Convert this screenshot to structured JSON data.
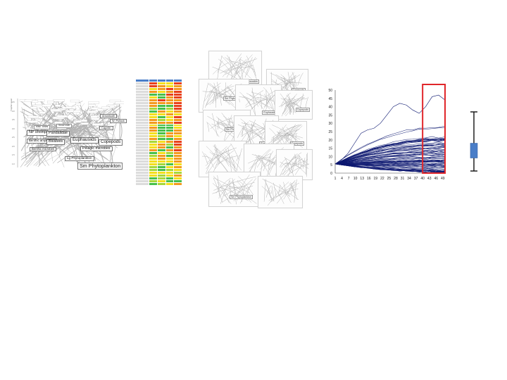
{
  "foodweb": {
    "y_axis_label": "Trophic Level",
    "y_ticks": [
      "4.5",
      "4.0",
      "3.5",
      "3.0",
      "2.5",
      "2.0",
      "1.5",
      "1.0"
    ],
    "major_labels": [
      {
        "id": "np-shrimp",
        "text": "NP shrimp"
      },
      {
        "id": "pandalidae",
        "text": "Pandalidae"
      },
      {
        "id": "euphausiids",
        "text": "Euphausiids"
      },
      {
        "id": "copepods",
        "text": "Copepods"
      },
      {
        "id": "benthic-amphipods",
        "text": "Benthic amphipods"
      },
      {
        "id": "bivalves",
        "text": "Bivalves"
      },
      {
        "id": "pelagic-microbes",
        "text": "Pelagic microbes"
      },
      {
        "id": "benthic-microbes",
        "text": "Benthic microbes"
      },
      {
        "id": "lg-phytoplankton",
        "text": "Lg Phytoplankton"
      },
      {
        "id": "sm-phytoplankton",
        "text": "Sm Phytoplankton"
      },
      {
        "id": "capelin",
        "text": "Capelin"
      },
      {
        "id": "arrowtooth",
        "text": "Arrowtooth"
      },
      {
        "id": "w-pollock",
        "text": "W. Pollock"
      },
      {
        "id": "misc-crabs",
        "text": "Misc. crabs"
      },
      {
        "id": "snow-crab",
        "text": "Snow crab"
      }
    ]
  },
  "heatmap": {
    "colors": {
      "red": "#e8401c",
      "orange": "#f39a1f",
      "yellow": "#f4df1e",
      "green": "#47c04a",
      "lightgreen": "#a6d83a",
      "grey": "#dcdcdc",
      "blue": "#4a7ec8"
    }
  },
  "montage": {
    "caption": "Sm Phytoplankton",
    "thumbnail_labels": [
      "Euphausiids",
      "Copepods",
      "Sm Phytoplankton",
      "Euphausiids",
      "Copepods",
      "Sm Phytoplankton",
      "Euphausiids",
      "Copepods"
    ]
  },
  "chart_data": {
    "type": "line",
    "x_ticks": [
      "1",
      "4",
      "7",
      "10",
      "13",
      "16",
      "19",
      "22",
      "25",
      "28",
      "31",
      "34",
      "37",
      "40",
      "43",
      "46",
      "49"
    ],
    "y_ticks": [
      "0",
      "5",
      "10",
      "15",
      "20",
      "25",
      "30",
      "35",
      "40",
      "45",
      "50"
    ],
    "xlim": [
      1,
      50
    ],
    "ylim": [
      0,
      50
    ],
    "start_value": 5.5,
    "series_count": 80,
    "series_color": "#0c1770",
    "highlight": {
      "x_range": [
        40,
        50
      ],
      "color": "#e0262a"
    },
    "series_example_top": [
      5.5,
      8,
      12,
      18,
      24,
      26,
      27,
      30,
      35,
      40,
      42,
      41,
      38,
      36,
      40,
      46,
      47,
      44
    ]
  },
  "boxplot": {
    "whisker_top_fraction": 0.0,
    "box_top_fraction": 0.53,
    "box_bottom_fraction": 0.78,
    "whisker_bottom_fraction": 1.0,
    "box_color": "#4a7ec8",
    "whisker_color": "#111111"
  }
}
